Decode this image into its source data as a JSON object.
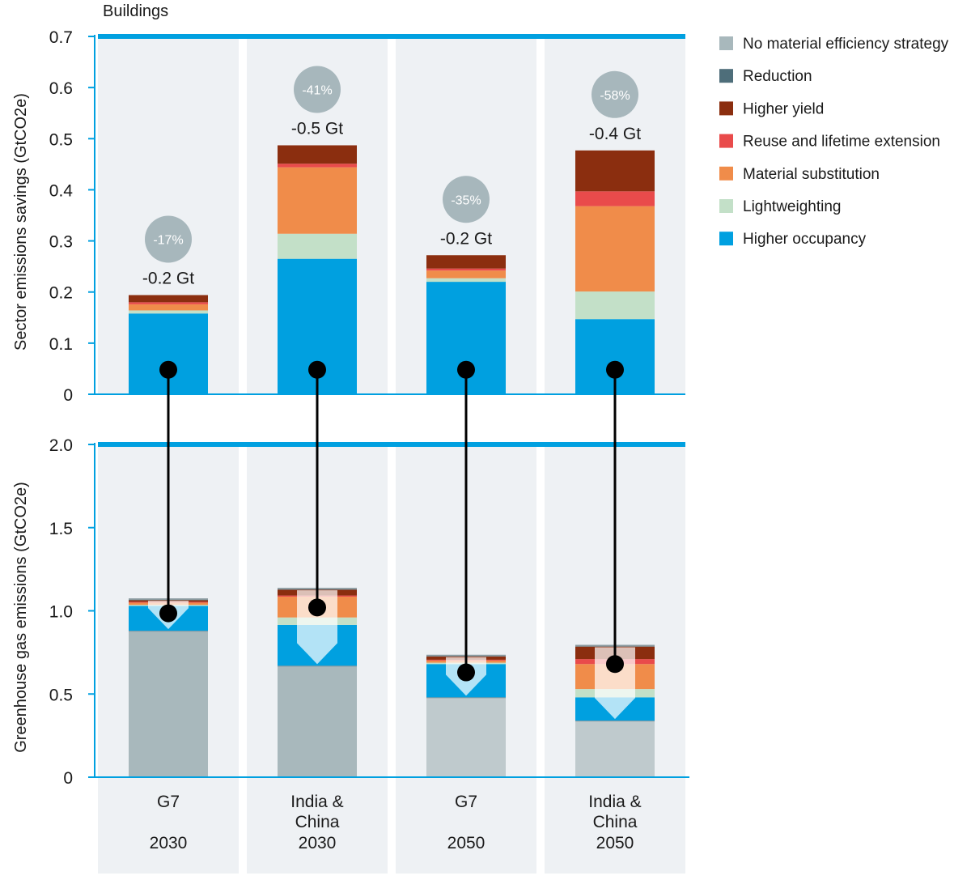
{
  "chart_data": {
    "type": "bar",
    "title": "Buildings",
    "categories": [
      {
        "region_lines": [
          "G7"
        ],
        "year": "2030"
      },
      {
        "region_lines": [
          "India &",
          "China"
        ],
        "year": "2030"
      },
      {
        "region_lines": [
          "G7"
        ],
        "year": "2050"
      },
      {
        "region_lines": [
          "India &",
          "China"
        ],
        "year": "2050"
      }
    ],
    "colors": {
      "No material efficiency strategy": "#a8b8bc",
      "Reduction": "#4e6e7a",
      "Higher yield": "#8b2e0f",
      "Reuse and lifetime extension": "#e94b4b",
      "Material substitution": "#f08c4a",
      "Lightweighting": "#c3e0c8",
      "Higher occupancy": "#00a0e0"
    },
    "legend": [
      "No material efficiency strategy",
      "Reduction",
      "Higher yield",
      "Reuse and lifetime extension",
      "Material substitution",
      "Lightweighting",
      "Higher occupancy"
    ],
    "top_panel": {
      "ylabel": "Sector emissions savings (GtCO2e)",
      "ylim": [
        0,
        0.7
      ],
      "yticks": [
        "0",
        "0.1",
        "0.2",
        "0.3",
        "0.4",
        "0.5",
        "0.6",
        "0.7"
      ],
      "series": [
        {
          "name": "Higher occupancy",
          "values": [
            0.158,
            0.265,
            0.22,
            0.147
          ]
        },
        {
          "name": "Lightweighting",
          "values": [
            0.006,
            0.049,
            0.007,
            0.054
          ]
        },
        {
          "name": "Material substitution",
          "values": [
            0.012,
            0.13,
            0.015,
            0.167
          ]
        },
        {
          "name": "Reuse and lifetime extension",
          "values": [
            0.004,
            0.007,
            0.004,
            0.029
          ]
        },
        {
          "name": "Higher yield",
          "values": [
            0.014,
            0.036,
            0.026,
            0.08
          ]
        },
        {
          "name": "Reduction",
          "values": [
            0,
            0,
            0,
            0
          ]
        }
      ],
      "totals": [
        "-0.2 Gt",
        "-0.5 Gt",
        "-0.2 Gt",
        "-0.4 Gt"
      ],
      "percent_reductions": [
        "-17%",
        "-41%",
        "-35%",
        "-58%"
      ],
      "marker_value": 0.048
    },
    "bottom_panel": {
      "ylabel": "Greenhouse gas emissions (GtCO2e)",
      "ylim": [
        0,
        2.0
      ],
      "yticks": [
        "0",
        "0.5",
        "1.0",
        "1.5",
        "2.0"
      ],
      "baseline": [
        0.88,
        0.67,
        0.48,
        0.34
      ],
      "baseline_colors": [
        "#a8b8bc",
        "#a8b8bc",
        "#bfcacd",
        "#bfcacd"
      ],
      "series": [
        {
          "name": "Higher occupancy",
          "values": [
            0.15,
            0.245,
            0.2,
            0.14
          ]
        },
        {
          "name": "Lightweighting",
          "values": [
            0.006,
            0.045,
            0.008,
            0.05
          ]
        },
        {
          "name": "Material substitution",
          "values": [
            0.013,
            0.125,
            0.013,
            0.15
          ]
        },
        {
          "name": "Reuse and lifetime extension",
          "values": [
            0.005,
            0.007,
            0.005,
            0.03
          ]
        },
        {
          "name": "Higher yield",
          "values": [
            0.01,
            0.035,
            0.02,
            0.075
          ]
        },
        {
          "name": "Reduction",
          "values": [
            0.006,
            0.006,
            0.005,
            0.006
          ]
        }
      ],
      "marker_values": [
        0.985,
        1.02,
        0.63,
        0.68
      ]
    }
  }
}
